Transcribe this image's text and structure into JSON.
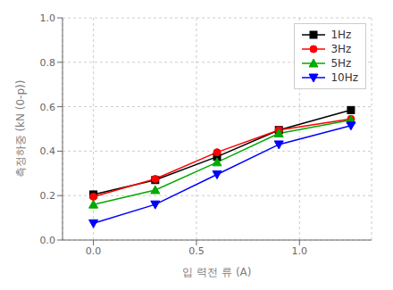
{
  "chart_data": {
    "type": "line",
    "xlabel": "입 력전 류 (A)",
    "ylabel": "측정하중 (kN (0-p))",
    "x": [
      0.0,
      0.3,
      0.6,
      0.9,
      1.25
    ],
    "series": [
      {
        "name": "1Hz",
        "color": "#000000",
        "marker": "square",
        "values": [
          0.205,
          0.27,
          0.375,
          0.495,
          0.585
        ]
      },
      {
        "name": "3Hz",
        "color": "#ff0000",
        "marker": "circle",
        "values": [
          0.195,
          0.275,
          0.395,
          0.495,
          0.545
        ]
      },
      {
        "name": "5Hz",
        "color": "#00aa00",
        "marker": "triangle-up",
        "values": [
          0.16,
          0.225,
          0.35,
          0.48,
          0.54
        ]
      },
      {
        "name": "10Hz",
        "color": "#0000ff",
        "marker": "triangle-down",
        "values": [
          0.075,
          0.16,
          0.295,
          0.43,
          0.515
        ]
      }
    ],
    "xlim": [
      -0.15,
      1.35
    ],
    "ylim": [
      0.0,
      1.0
    ],
    "xticks": [
      {
        "value": 0,
        "label": "0.0"
      },
      0.5,
      {
        "value": 1,
        "label": "1.0"
      }
    ],
    "yticks": [
      {
        "value": 0,
        "label": "0.0"
      },
      0.2,
      0.4,
      0.6,
      0.8,
      {
        "value": 1,
        "label": "1.0"
      }
    ],
    "grid": true,
    "legend": "upper right"
  }
}
